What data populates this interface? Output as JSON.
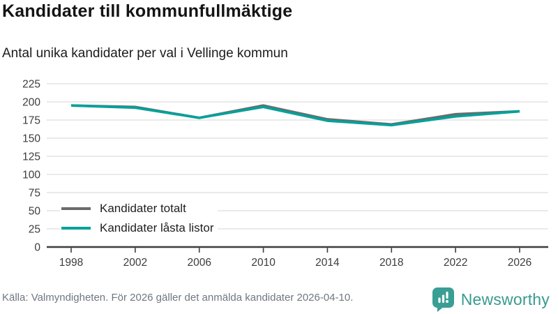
{
  "header": {
    "title": "Kandidater till kommunfullmäktige",
    "subtitle": "Antal unika kandidater per val i Vellinge kommun"
  },
  "chart_data": {
    "type": "line",
    "title": "Kandidater till kommunfullmäktige",
    "subtitle": "Antal unika kandidater per val i Vellinge kommun",
    "x": [
      1998,
      2002,
      2006,
      2010,
      2014,
      2018,
      2022,
      2026
    ],
    "series": [
      {
        "name": "Kandidater totalt",
        "color": "#6b6b6b",
        "values": [
          195,
          193,
          178,
          195,
          176,
          169,
          183,
          187
        ]
      },
      {
        "name": "Kandidater låsta listor",
        "color": "#00a19a",
        "values": [
          195,
          192,
          178,
          193,
          174,
          168,
          180,
          187
        ]
      }
    ],
    "ylim": [
      0,
      225
    ],
    "ytick_step": 25,
    "grid": true,
    "legend_position": "inside-bottom-left"
  },
  "footer": {
    "source": "Källa: Valmyndigheten. För 2026 gäller det anmälda kandidater 2026-04-10.",
    "brand": "Newsworthy"
  },
  "colors": {
    "grid": "#e3e3e3",
    "axis": "#3d3d3d",
    "tick_label": "#3c3c3c",
    "brand_teal": "#3a9e94"
  }
}
